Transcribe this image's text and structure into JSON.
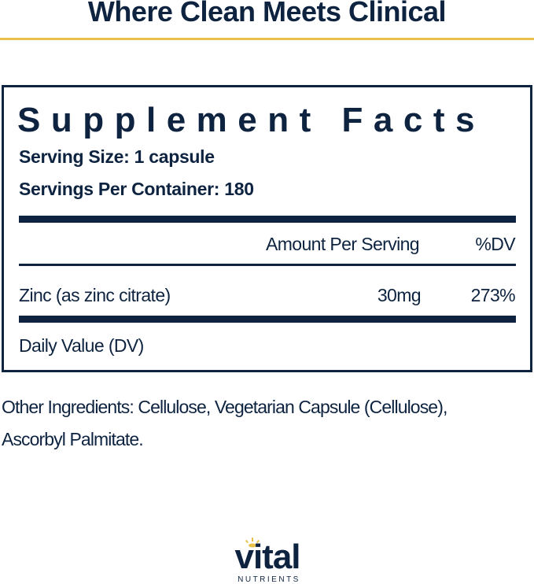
{
  "header": {
    "tagline": "Where Clean Meets Clinical",
    "accent_color": "#e8c04a",
    "text_color": "#0d2340"
  },
  "facts": {
    "title": "Supplement Facts",
    "serving_size": "Serving Size: 1 capsule",
    "servings_per_container": "Servings Per Container: 180",
    "col_amount": "Amount Per Serving",
    "col_dv": "%DV",
    "rows": [
      {
        "name": "Zinc (as zinc citrate)",
        "amount": "30mg",
        "dv": "273%"
      }
    ],
    "footnote": "Daily Value (DV)"
  },
  "other_ingredients": {
    "line1": "Other Ingredients: Cellulose, Vegetarian Capsule (Cellulose),",
    "line2": "Ascorbyl Palmitate."
  },
  "brand": {
    "logo_word": "vital",
    "logo_sub": "NUTRIENTS"
  }
}
